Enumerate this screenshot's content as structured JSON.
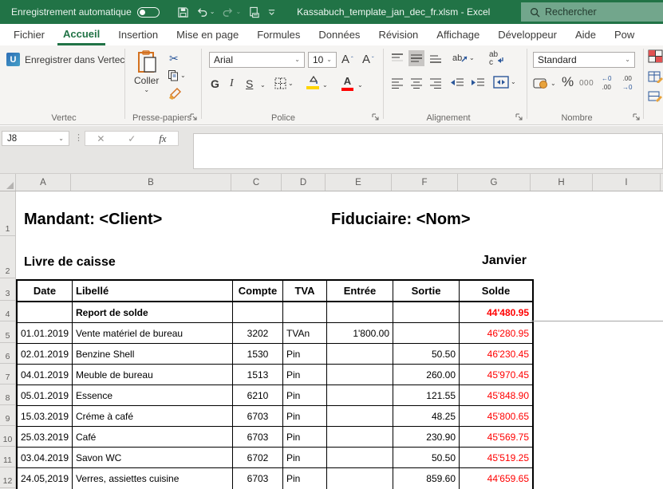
{
  "colors": {
    "accent_green": "#217346",
    "search_green": "#72a68c",
    "negative_red": "#ff0000",
    "selection_grey": "#c8c6c4"
  },
  "titlebar": {
    "autosave_label": "Enregistrement automatique",
    "filename": "Kassabuch_template_jan_dec_fr.xlsm  -  Excel",
    "search_placeholder": "Rechercher"
  },
  "tabs": {
    "active_index": 1,
    "items": [
      "Fichier",
      "Accueil",
      "Insertion",
      "Mise en page",
      "Formules",
      "Données",
      "Révision",
      "Affichage",
      "Développeur",
      "Aide",
      "Pow"
    ]
  },
  "ribbon": {
    "vertec": {
      "button_label": "Enregistrer dans Vertec",
      "logo_letter": "U",
      "group_label": "Vertec"
    },
    "clipboard": {
      "paste_label": "Coller",
      "group_label": "Presse-papiers"
    },
    "font": {
      "font_name": "Arial",
      "font_size": "10",
      "bold_label": "G",
      "italic_label": "I",
      "underline_label": "S",
      "color_label": "A",
      "group_label": "Police"
    },
    "alignment": {
      "orientation_label": "ab",
      "wrap_label": "ab",
      "group_label": "Alignement"
    },
    "number": {
      "format_value": "Standard",
      "percent_label": "%",
      "thousands_label": "000",
      "dec_inc_label": ".00",
      "dec_dec_label": ".00",
      "group_label": "Nombre"
    }
  },
  "formula_bar": {
    "name_box_value": "J8",
    "cancel_glyph": "✕",
    "enter_glyph": "✓",
    "fx_label": "fx"
  },
  "icons": {
    "chevron_down": "⌄",
    "scissors_glyph": "✂",
    "more_dots": "⋮"
  },
  "sheet": {
    "column_headers": [
      "A",
      "B",
      "C",
      "D",
      "E",
      "F",
      "G",
      "H",
      "I"
    ],
    "row_numbers": [
      "1",
      "2",
      "3",
      "4",
      "5",
      "6",
      "7",
      "8",
      "9",
      "10",
      "11",
      "12"
    ],
    "title_left": "Mandant: <Client>",
    "title_right": "Fiduciaire: <Nom>",
    "subtitle_left": "Livre de caisse",
    "subtitle_right": "Janvier",
    "table": {
      "headers": [
        "Date",
        "Libellé",
        "Compte",
        "TVA",
        "Entrée",
        "Sortie",
        "Solde"
      ],
      "rows": [
        {
          "bold": true,
          "cells": [
            "",
            "Report de solde",
            "",
            "",
            "",
            "",
            "44'480.95"
          ]
        },
        {
          "bold": false,
          "cells": [
            "01.01.2019",
            "Vente matériel de bureau",
            "3202",
            "TVAn",
            "1'800.00",
            "",
            "46'280.95"
          ]
        },
        {
          "bold": false,
          "cells": [
            "02.01.2019",
            "Benzine Shell",
            "1530",
            "Pin",
            "",
            "50.50",
            "46'230.45"
          ]
        },
        {
          "bold": false,
          "cells": [
            "04.01.2019",
            "Meuble de bureau",
            "1513",
            "Pin",
            "",
            "260.00",
            "45'970.45"
          ]
        },
        {
          "bold": false,
          "cells": [
            "05.01.2019",
            "Essence",
            "6210",
            "Pin",
            "",
            "121.55",
            "45'848.90"
          ]
        },
        {
          "bold": false,
          "cells": [
            "15.03.2019",
            "Créme à café",
            "6703",
            "Pin",
            "",
            "48.25",
            "45'800.65"
          ]
        },
        {
          "bold": false,
          "cells": [
            "25.03.2019",
            "Café",
            "6703",
            "Pin",
            "",
            "230.90",
            "45'569.75"
          ]
        },
        {
          "bold": false,
          "cells": [
            "03.04.2019",
            "Savon WC",
            "6702",
            "Pin",
            "",
            "50.50",
            "45'519.25"
          ]
        },
        {
          "bold": false,
          "cells": [
            "24.05,2019",
            "Verres, assiettes cuisine",
            "6703",
            "Pin",
            "",
            "859.60",
            "44'659.65"
          ]
        }
      ]
    }
  }
}
